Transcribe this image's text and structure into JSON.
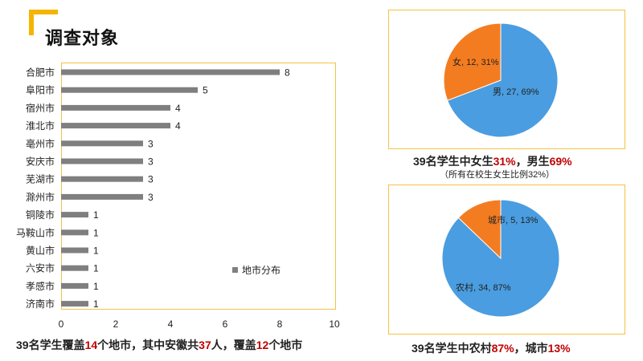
{
  "page": {
    "title": "调查对象"
  },
  "colors": {
    "accent": "#f5b400",
    "bar": "#7f7f7f",
    "female": "#f47c20",
    "male": "#4a9de0",
    "highlight": "#c00000"
  },
  "captions": {
    "bar": {
      "p1": "39名学生覆盖",
      "n1": "14",
      "p2": "个地市，其中安徽共",
      "n2": "37",
      "p3": "人，覆盖",
      "n3": "12",
      "p4": "个地市"
    },
    "gender": {
      "p1": "39名学生中女生",
      "n1": "31%",
      "p2": "，男生",
      "n2": "69%"
    },
    "gender_note": "（所有在校生女生比例32%）",
    "residence": {
      "p1": "39名学生中农村",
      "n1": "87%",
      "p2": "，城市",
      "n2": "13%"
    }
  },
  "chart_data": [
    {
      "type": "bar",
      "orientation": "horizontal",
      "categories": [
        "合肥市",
        "阜阳市",
        "宿州市",
        "淮北市",
        "亳州市",
        "安庆市",
        "芜湖市",
        "滁州市",
        "铜陵市",
        "马鞍山市",
        "黄山市",
        "六安市",
        "孝感市",
        "济南市"
      ],
      "series": [
        {
          "name": "地市分布",
          "values": [
            8,
            5,
            4,
            4,
            3,
            3,
            3,
            3,
            1,
            1,
            1,
            1,
            1,
            1
          ]
        }
      ],
      "xlim": [
        0,
        10
      ],
      "xticks": [
        0,
        2,
        4,
        6,
        8,
        10
      ],
      "grid": false,
      "legend": "bottom-right, inside plot"
    },
    {
      "type": "pie",
      "labels": [
        "男",
        "女"
      ],
      "values": [
        27,
        12
      ],
      "percents": [
        "69%",
        "31%"
      ],
      "colors": [
        "#4a9de0",
        "#f47c20"
      ]
    },
    {
      "type": "pie",
      "labels": [
        "农村",
        "城市"
      ],
      "values": [
        34,
        5
      ],
      "percents": [
        "87%",
        "13%"
      ],
      "colors": [
        "#4a9de0",
        "#f47c20"
      ]
    }
  ]
}
